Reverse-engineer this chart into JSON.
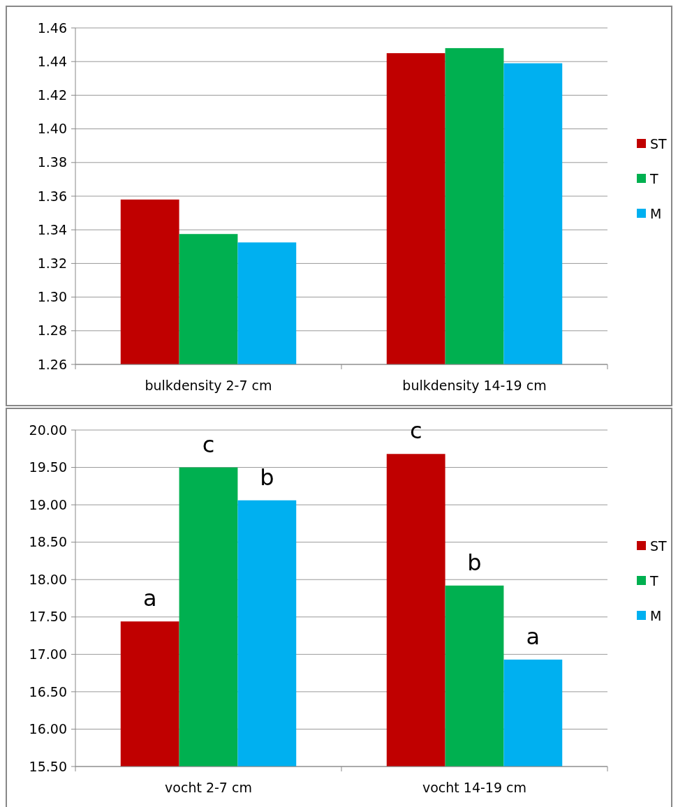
{
  "chart_data": [
    {
      "type": "bar",
      "categories": [
        "bulkdensity 2-7 cm",
        "bulkdensity 14-19 cm"
      ],
      "series": [
        {
          "name": "ST",
          "color": "#c00000",
          "values": [
            1.358,
            1.445
          ]
        },
        {
          "name": "T",
          "color": "#00b050",
          "values": [
            1.3375,
            1.448
          ]
        },
        {
          "name": "M",
          "color": "#00b0f0",
          "values": [
            1.3325,
            1.439
          ]
        }
      ],
      "ylim": [
        1.26,
        1.46
      ],
      "yticks": [
        {
          "value": 1.26,
          "label": "1.26"
        },
        {
          "value": 1.28,
          "label": "1.28"
        },
        {
          "value": 1.3,
          "label": "1.30"
        },
        {
          "value": 1.32,
          "label": "1.32"
        },
        {
          "value": 1.34,
          "label": "1.34"
        },
        {
          "value": 1.36,
          "label": "1.36"
        },
        {
          "value": 1.38,
          "label": "1.38"
        },
        {
          "value": 1.4,
          "label": "1.40"
        },
        {
          "value": 1.42,
          "label": "1.42"
        },
        {
          "value": 1.44,
          "label": "1.44"
        },
        {
          "value": 1.46,
          "label": "1.46"
        }
      ],
      "grid": "y",
      "legend": "right"
    },
    {
      "type": "bar",
      "categories": [
        "vocht 2-7 cm",
        "vocht 14-19 cm"
      ],
      "series": [
        {
          "name": "ST",
          "color": "#c00000",
          "values": [
            17.44,
            19.68
          ]
        },
        {
          "name": "T",
          "color": "#00b050",
          "values": [
            19.5,
            17.92
          ]
        },
        {
          "name": "M",
          "color": "#00b0f0",
          "values": [
            19.06,
            16.93
          ]
        }
      ],
      "ylim": [
        15.5,
        20
      ],
      "yticks": [
        {
          "value": 15.5,
          "label": "15.50"
        },
        {
          "value": 16,
          "label": "16.00"
        },
        {
          "value": 16.5,
          "label": "16.50"
        },
        {
          "value": 17,
          "label": "17.00"
        },
        {
          "value": 17.5,
          "label": "17.50"
        },
        {
          "value": 18,
          "label": "18.00"
        },
        {
          "value": 18.5,
          "label": "18.50"
        },
        {
          "value": 19,
          "label": "19.00"
        },
        {
          "value": 19.5,
          "label": "19.50"
        },
        {
          "value": 20,
          "label": "20.00"
        }
      ],
      "grid": "y",
      "legend": "right",
      "annotations": [
        "a",
        "c",
        "b",
        "c",
        "b",
        "a"
      ]
    }
  ]
}
